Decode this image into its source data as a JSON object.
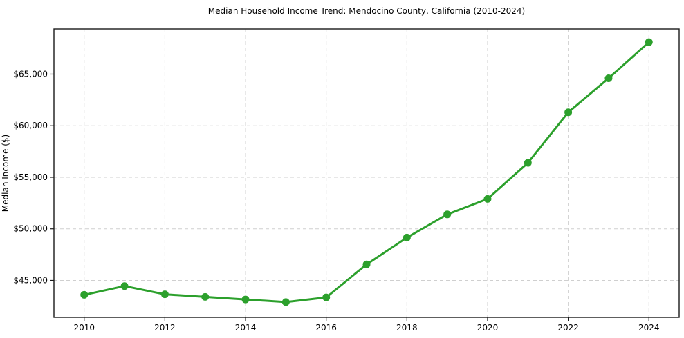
{
  "chart_data": {
    "type": "line",
    "title": "Median Household Income Trend: Mendocino County, California (2010-2024)",
    "xlabel": "",
    "ylabel": "Median Income ($)",
    "series": [
      {
        "name": "Median household income",
        "x": [
          2010,
          2011,
          2012,
          2013,
          2014,
          2015,
          2016,
          2017,
          2018,
          2019,
          2020,
          2021,
          2022,
          2023,
          2024
        ],
        "values": [
          43600,
          44450,
          43650,
          43400,
          43150,
          42900,
          43350,
          46550,
          49150,
          51400,
          52900,
          56400,
          61300,
          64600,
          68100
        ]
      }
    ],
    "line_color": "#2ca02c",
    "marker": "circle",
    "marker_radius": 5.5,
    "line_width": 3,
    "grid": true,
    "grid_style": "dashed",
    "grid_color": "#cfcfcf",
    "spine_color": "#1a1a1a",
    "legend_position": "none",
    "xlim": [
      2009.25,
      2024.75
    ],
    "ylim": [
      41420,
      69380
    ],
    "xticks": [
      {
        "v": 2010,
        "label": "2010"
      },
      {
        "v": 2012,
        "label": "2012"
      },
      {
        "v": 2014,
        "label": "2014"
      },
      {
        "v": 2016,
        "label": "2016"
      },
      {
        "v": 2018,
        "label": "2018"
      },
      {
        "v": 2020,
        "label": "2020"
      },
      {
        "v": 2022,
        "label": "2022"
      },
      {
        "v": 2024,
        "label": "2024"
      }
    ],
    "yticks": [
      {
        "v": 45000,
        "label": "$45,000"
      },
      {
        "v": 50000,
        "label": "$50,000"
      },
      {
        "v": 55000,
        "label": "$55,000"
      },
      {
        "v": 60000,
        "label": "$60,000"
      },
      {
        "v": 65000,
        "label": "$65,000"
      }
    ]
  }
}
